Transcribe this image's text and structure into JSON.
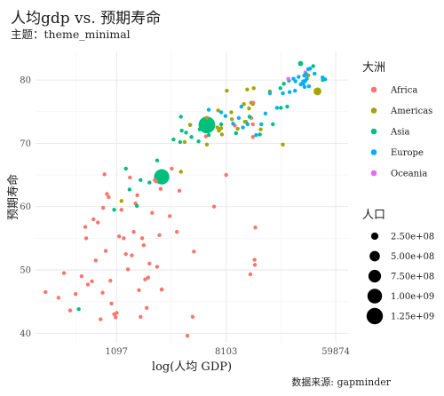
{
  "title": "人均gdp vs. 预期寿命",
  "subtitle": "主题：theme_minimal",
  "caption": "数据来源: gapminder",
  "chart_data": {
    "type": "scatter",
    "xlabel": "log(人均 GDP)",
    "ylabel": "预期寿命",
    "x_scale": "log",
    "x_ticks": [
      1097,
      8103,
      59874
    ],
    "y_ticks": [
      40,
      50,
      60,
      70,
      80
    ],
    "xlim": [
      250,
      75000
    ],
    "ylim": [
      38.5,
      84.5
    ],
    "grid": true,
    "color_legend": {
      "title": "大洲",
      "entries": [
        {
          "name": "Africa",
          "color": "#F8766D"
        },
        {
          "name": "Americas",
          "color": "#A3A500"
        },
        {
          "name": "Asia",
          "color": "#00BF7D"
        },
        {
          "name": "Europe",
          "color": "#00B0F6"
        },
        {
          "name": "Oceania",
          "color": "#E76BF3"
        }
      ]
    },
    "size_legend": {
      "title": "人口",
      "entries": [
        "2.50e+08",
        "5.00e+08",
        "7.50e+08",
        "1.00e+09",
        "1.25e+09"
      ],
      "values": [
        250000000,
        500000000,
        750000000,
        1000000000,
        1250000000
      ]
    },
    "series": [
      {
        "name": "Africa",
        "points": [
          [
            300,
            46.5,
            25
          ],
          [
            380,
            45.6,
            6
          ],
          [
            420,
            49.5,
            8
          ],
          [
            470,
            43.6,
            12
          ],
          [
            520,
            46.2,
            6
          ],
          [
            580,
            49.0,
            4
          ],
          [
            620,
            56.8,
            8
          ],
          [
            630,
            55.0,
            6
          ],
          [
            650,
            47.7,
            5
          ],
          [
            700,
            48.2,
            12
          ],
          [
            720,
            58.0,
            6
          ],
          [
            750,
            51.5,
            6
          ],
          [
            780,
            57.5,
            5
          ],
          [
            820,
            42.2,
            8
          ],
          [
            850,
            46.4,
            12
          ],
          [
            860,
            59.8,
            5
          ],
          [
            900,
            53.0,
            35
          ],
          [
            880,
            65.1,
            6
          ],
          [
            920,
            62.0,
            5
          ],
          [
            950,
            61.5,
            5
          ],
          [
            980,
            48.3,
            8
          ],
          [
            1000,
            44.7,
            6
          ],
          [
            1050,
            43.0,
            8
          ],
          [
            1080,
            42.5,
            12
          ],
          [
            1100,
            43.2,
            5
          ],
          [
            1150,
            55.3,
            8
          ],
          [
            1200,
            59.5,
            6
          ],
          [
            1250,
            55.0,
            5
          ],
          [
            1300,
            52.5,
            8
          ],
          [
            1350,
            50.1,
            5
          ],
          [
            1400,
            64.6,
            6
          ],
          [
            1450,
            52.3,
            8
          ],
          [
            1500,
            56.0,
            6
          ],
          [
            1550,
            60.5,
            8
          ],
          [
            1600,
            61.8,
            6
          ],
          [
            1650,
            46.8,
            6
          ],
          [
            1700,
            42.6,
            8
          ],
          [
            1750,
            55.0,
            6
          ],
          [
            1800,
            53.9,
            5
          ],
          [
            1850,
            48.5,
            6
          ],
          [
            1900,
            44.0,
            6
          ],
          [
            1950,
            48.8,
            6
          ],
          [
            2000,
            51.0,
            5
          ],
          [
            2100,
            59.0,
            5
          ],
          [
            2200,
            64.2,
            6
          ],
          [
            2250,
            64.0,
            8
          ],
          [
            2300,
            50.5,
            6
          ],
          [
            2400,
            55.5,
            8
          ],
          [
            2450,
            62.8,
            5
          ],
          [
            2500,
            46.9,
            80
          ],
          [
            2900,
            58.5,
            8
          ],
          [
            3000,
            66.0,
            5
          ],
          [
            3300,
            56.0,
            8
          ],
          [
            3450,
            62.5,
            6
          ],
          [
            4000,
            39.6,
            6
          ],
          [
            4400,
            42.6,
            6
          ],
          [
            4500,
            52.9,
            5
          ],
          [
            5600,
            71.1,
            5
          ],
          [
            6500,
            60.0,
            6
          ],
          [
            9500,
            72.8,
            8
          ],
          [
            12600,
            49.3,
            12
          ],
          [
            12800,
            74.0,
            6
          ],
          [
            13200,
            71.0,
            12
          ],
          [
            13200,
            73.0,
            6
          ],
          [
            13300,
            76.4,
            5
          ],
          [
            13600,
            51.6,
            5
          ],
          [
            13700,
            50.8,
            6
          ],
          [
            13800,
            56.7,
            5
          ],
          [
            8100,
            65.0,
            6
          ]
        ]
      },
      {
        "name": "Americas",
        "points": [
          [
            1200,
            60.9,
            6
          ],
          [
            3550,
            65.5,
            12
          ],
          [
            3800,
            70.2,
            8
          ],
          [
            4200,
            72.9,
            6
          ],
          [
            5700,
            74.0,
            6
          ],
          [
            5700,
            69.8,
            8
          ],
          [
            6900,
            72.5,
            6
          ],
          [
            7100,
            72.0,
            6
          ],
          [
            7000,
            75.2,
            8
          ],
          [
            7400,
            72.4,
            8
          ],
          [
            7500,
            71.4,
            5
          ],
          [
            8200,
            78.3,
            8
          ],
          [
            8900,
            74.9,
            8
          ],
          [
            9000,
            73.8,
            6
          ],
          [
            10000,
            72.3,
            50
          ],
          [
            11200,
            76.2,
            5
          ],
          [
            11400,
            73.4,
            6
          ],
          [
            11900,
            78.5,
            6
          ],
          [
            12300,
            75.5,
            8
          ],
          [
            12800,
            76.4,
            8
          ],
          [
            13200,
            76.2,
            6
          ],
          [
            13400,
            78.7,
            8
          ],
          [
            15200,
            72.2,
            5
          ],
          [
            18000,
            78.2,
            8
          ],
          [
            22800,
            69.8,
            8
          ],
          [
            36300,
            80.7,
            30
          ],
          [
            42900,
            78.2,
            290
          ]
        ]
      },
      {
        "name": "Asia",
        "points": [
          [
            550,
            43.8,
            20
          ],
          [
            1050,
            59.5,
            6
          ],
          [
            1300,
            66.0,
            6
          ],
          [
            1390,
            62.7,
            6
          ],
          [
            1590,
            60.1,
            8
          ],
          [
            1700,
            64.2,
            6
          ],
          [
            2000,
            63.8,
            40
          ],
          [
            2300,
            67.3,
            8
          ],
          [
            2500,
            64.7,
            1100
          ],
          [
            2600,
            64.8,
            40
          ],
          [
            3100,
            70.6,
            6
          ],
          [
            3500,
            70.2,
            60
          ],
          [
            3550,
            74.2,
            20
          ],
          [
            3600,
            72.0,
            6
          ],
          [
            3900,
            71.7,
            12
          ],
          [
            4200,
            72.9,
            8
          ],
          [
            4300,
            71.0,
            8
          ],
          [
            4900,
            70.3,
            8
          ],
          [
            5000,
            72.2,
            6
          ],
          [
            5700,
            72.9,
            1320
          ],
          [
            5900,
            71.3,
            8
          ],
          [
            7400,
            73.0,
            6
          ],
          [
            9700,
            71.6,
            6
          ],
          [
            11600,
            73.4,
            12
          ],
          [
            12400,
            74.2,
            6
          ],
          [
            15000,
            71.4,
            6
          ],
          [
            19000,
            73.0,
            12
          ],
          [
            21800,
            78.7,
            6
          ],
          [
            22000,
            75.6,
            8
          ],
          [
            23200,
            79.4,
            20
          ],
          [
            24700,
            75.8,
            6
          ],
          [
            25500,
            79.9,
            6
          ],
          [
            31500,
            82.6,
            127
          ],
          [
            39700,
            82.2,
            12
          ],
          [
            47300,
            80.0,
            6
          ]
        ]
      },
      {
        "name": "Europe",
        "points": [
          [
            5900,
            75.3,
            8
          ],
          [
            7400,
            74.9,
            6
          ],
          [
            8000,
            74.3,
            6
          ],
          [
            9200,
            73.1,
            6
          ],
          [
            10200,
            74.0,
            8
          ],
          [
            10700,
            75.8,
            12
          ],
          [
            11000,
            72.5,
            6
          ],
          [
            12000,
            73.0,
            6
          ],
          [
            14000,
            71.3,
            40
          ],
          [
            15400,
            73.0,
            6
          ],
          [
            16600,
            74.7,
            6
          ],
          [
            18000,
            77.9,
            6
          ],
          [
            20500,
            75.6,
            12
          ],
          [
            22800,
            77.9,
            12
          ],
          [
            25800,
            78.1,
            6
          ],
          [
            27700,
            80.2,
            8
          ],
          [
            28500,
            78.3,
            40
          ],
          [
            28700,
            79.8,
            12
          ],
          [
            30400,
            80.5,
            60
          ],
          [
            31600,
            79.3,
            12
          ],
          [
            32200,
            79.4,
            50
          ],
          [
            33100,
            79.8,
            12
          ],
          [
            33200,
            79.4,
            8
          ],
          [
            33700,
            80.7,
            6
          ],
          [
            33900,
            78.9,
            8
          ],
          [
            34500,
            79.9,
            6
          ],
          [
            35000,
            80.9,
            8
          ],
          [
            35300,
            80.2,
            12
          ],
          [
            36200,
            81.7,
            6
          ],
          [
            36700,
            79.0,
            6
          ],
          [
            37500,
            81.8,
            8
          ],
          [
            40700,
            81.0,
            6
          ],
          [
            47100,
            80.4,
            6
          ],
          [
            49400,
            80.1,
            6
          ]
        ]
      },
      {
        "name": "Oceania",
        "points": [
          [
            25200,
            80.2,
            6
          ],
          [
            34400,
            81.2,
            20
          ]
        ]
      }
    ]
  }
}
